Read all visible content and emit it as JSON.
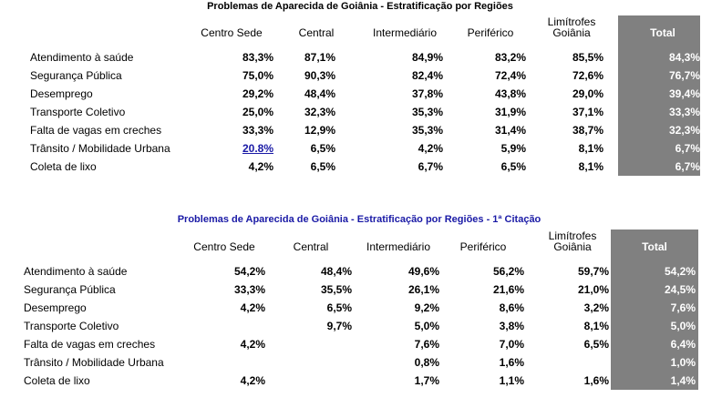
{
  "tables": [
    {
      "title": "Problemas de Aparecida de Goiânia - Estratificação por Regiões",
      "headers": [
        "Centro Sede",
        "Central",
        "Intermediário",
        "Periférico",
        [
          "Limítrofes",
          "Goiânia"
        ],
        "Total"
      ],
      "rows": [
        {
          "label": "Atendimento à saúde",
          "cells": [
            "83,3%",
            "87,1%",
            "84,9%",
            "83,2%",
            "85,5%",
            "84,3%"
          ]
        },
        {
          "label": "Segurança Pública",
          "cells": [
            "75,0%",
            "90,3%",
            "82,4%",
            "72,4%",
            "72,6%",
            "76,7%"
          ]
        },
        {
          "label": "Desemprego",
          "cells": [
            "29,2%",
            "48,4%",
            "37,8%",
            "43,8%",
            "29,0%",
            "39,4%"
          ]
        },
        {
          "label": "Transporte Coletivo",
          "cells": [
            "25,0%",
            "32,3%",
            "35,3%",
            "31,9%",
            "37,1%",
            "33,3%"
          ]
        },
        {
          "label": "Falta de vagas em creches",
          "cells": [
            "33,3%",
            "12,9%",
            "35,3%",
            "31,4%",
            "38,7%",
            "32,3%"
          ]
        },
        {
          "label": "Trânsito / Mobilidade Urbana",
          "cells": [
            "20.8%",
            "6,5%",
            "4,2%",
            "5,9%",
            "8,1%",
            "6,7%"
          ]
        },
        {
          "label": "Coleta de lixo",
          "cells": [
            "4,2%",
            "6,5%",
            "6,7%",
            "6,5%",
            "8,1%",
            "6,7%"
          ]
        }
      ]
    },
    {
      "title": "Problemas de Aparecida de Goiânia - Estratificação por Regiões - 1ª Citação",
      "headers": [
        "Centro Sede",
        "Central",
        "Intermediário",
        "Periférico",
        [
          "Limítrofes",
          "Goiânia"
        ],
        "Total"
      ],
      "rows": [
        {
          "label": "Atendimento à saúde",
          "cells": [
            "54,2%",
            "48,4%",
            "49,6%",
            "56,2%",
            "59,7%",
            "54,2%"
          ]
        },
        {
          "label": "Segurança Pública",
          "cells": [
            "33,3%",
            "35,5%",
            "26,1%",
            "21,6%",
            "21,0%",
            "24,5%"
          ]
        },
        {
          "label": "Desemprego",
          "cells": [
            "4,2%",
            "6,5%",
            "9,2%",
            "8,6%",
            "3,2%",
            "7,6%"
          ]
        },
        {
          "label": "Transporte Coletivo",
          "cells": [
            null,
            "9,7%",
            "5,0%",
            "3,8%",
            "8,1%",
            "5,0%"
          ]
        },
        {
          "label": "Falta de vagas em creches",
          "cells": [
            "4,2%",
            null,
            "7,6%",
            "7,0%",
            "6,5%",
            "6,4%"
          ]
        },
        {
          "label": "Trânsito / Mobilidade Urbana",
          "cells": [
            null,
            null,
            "0,8%",
            "1,6%",
            null,
            "1,0%"
          ]
        },
        {
          "label": "Coleta de lixo",
          "cells": [
            "4,2%",
            null,
            "1,7%",
            "1,1%",
            "1,6%",
            "1,4%"
          ]
        }
      ]
    }
  ]
}
